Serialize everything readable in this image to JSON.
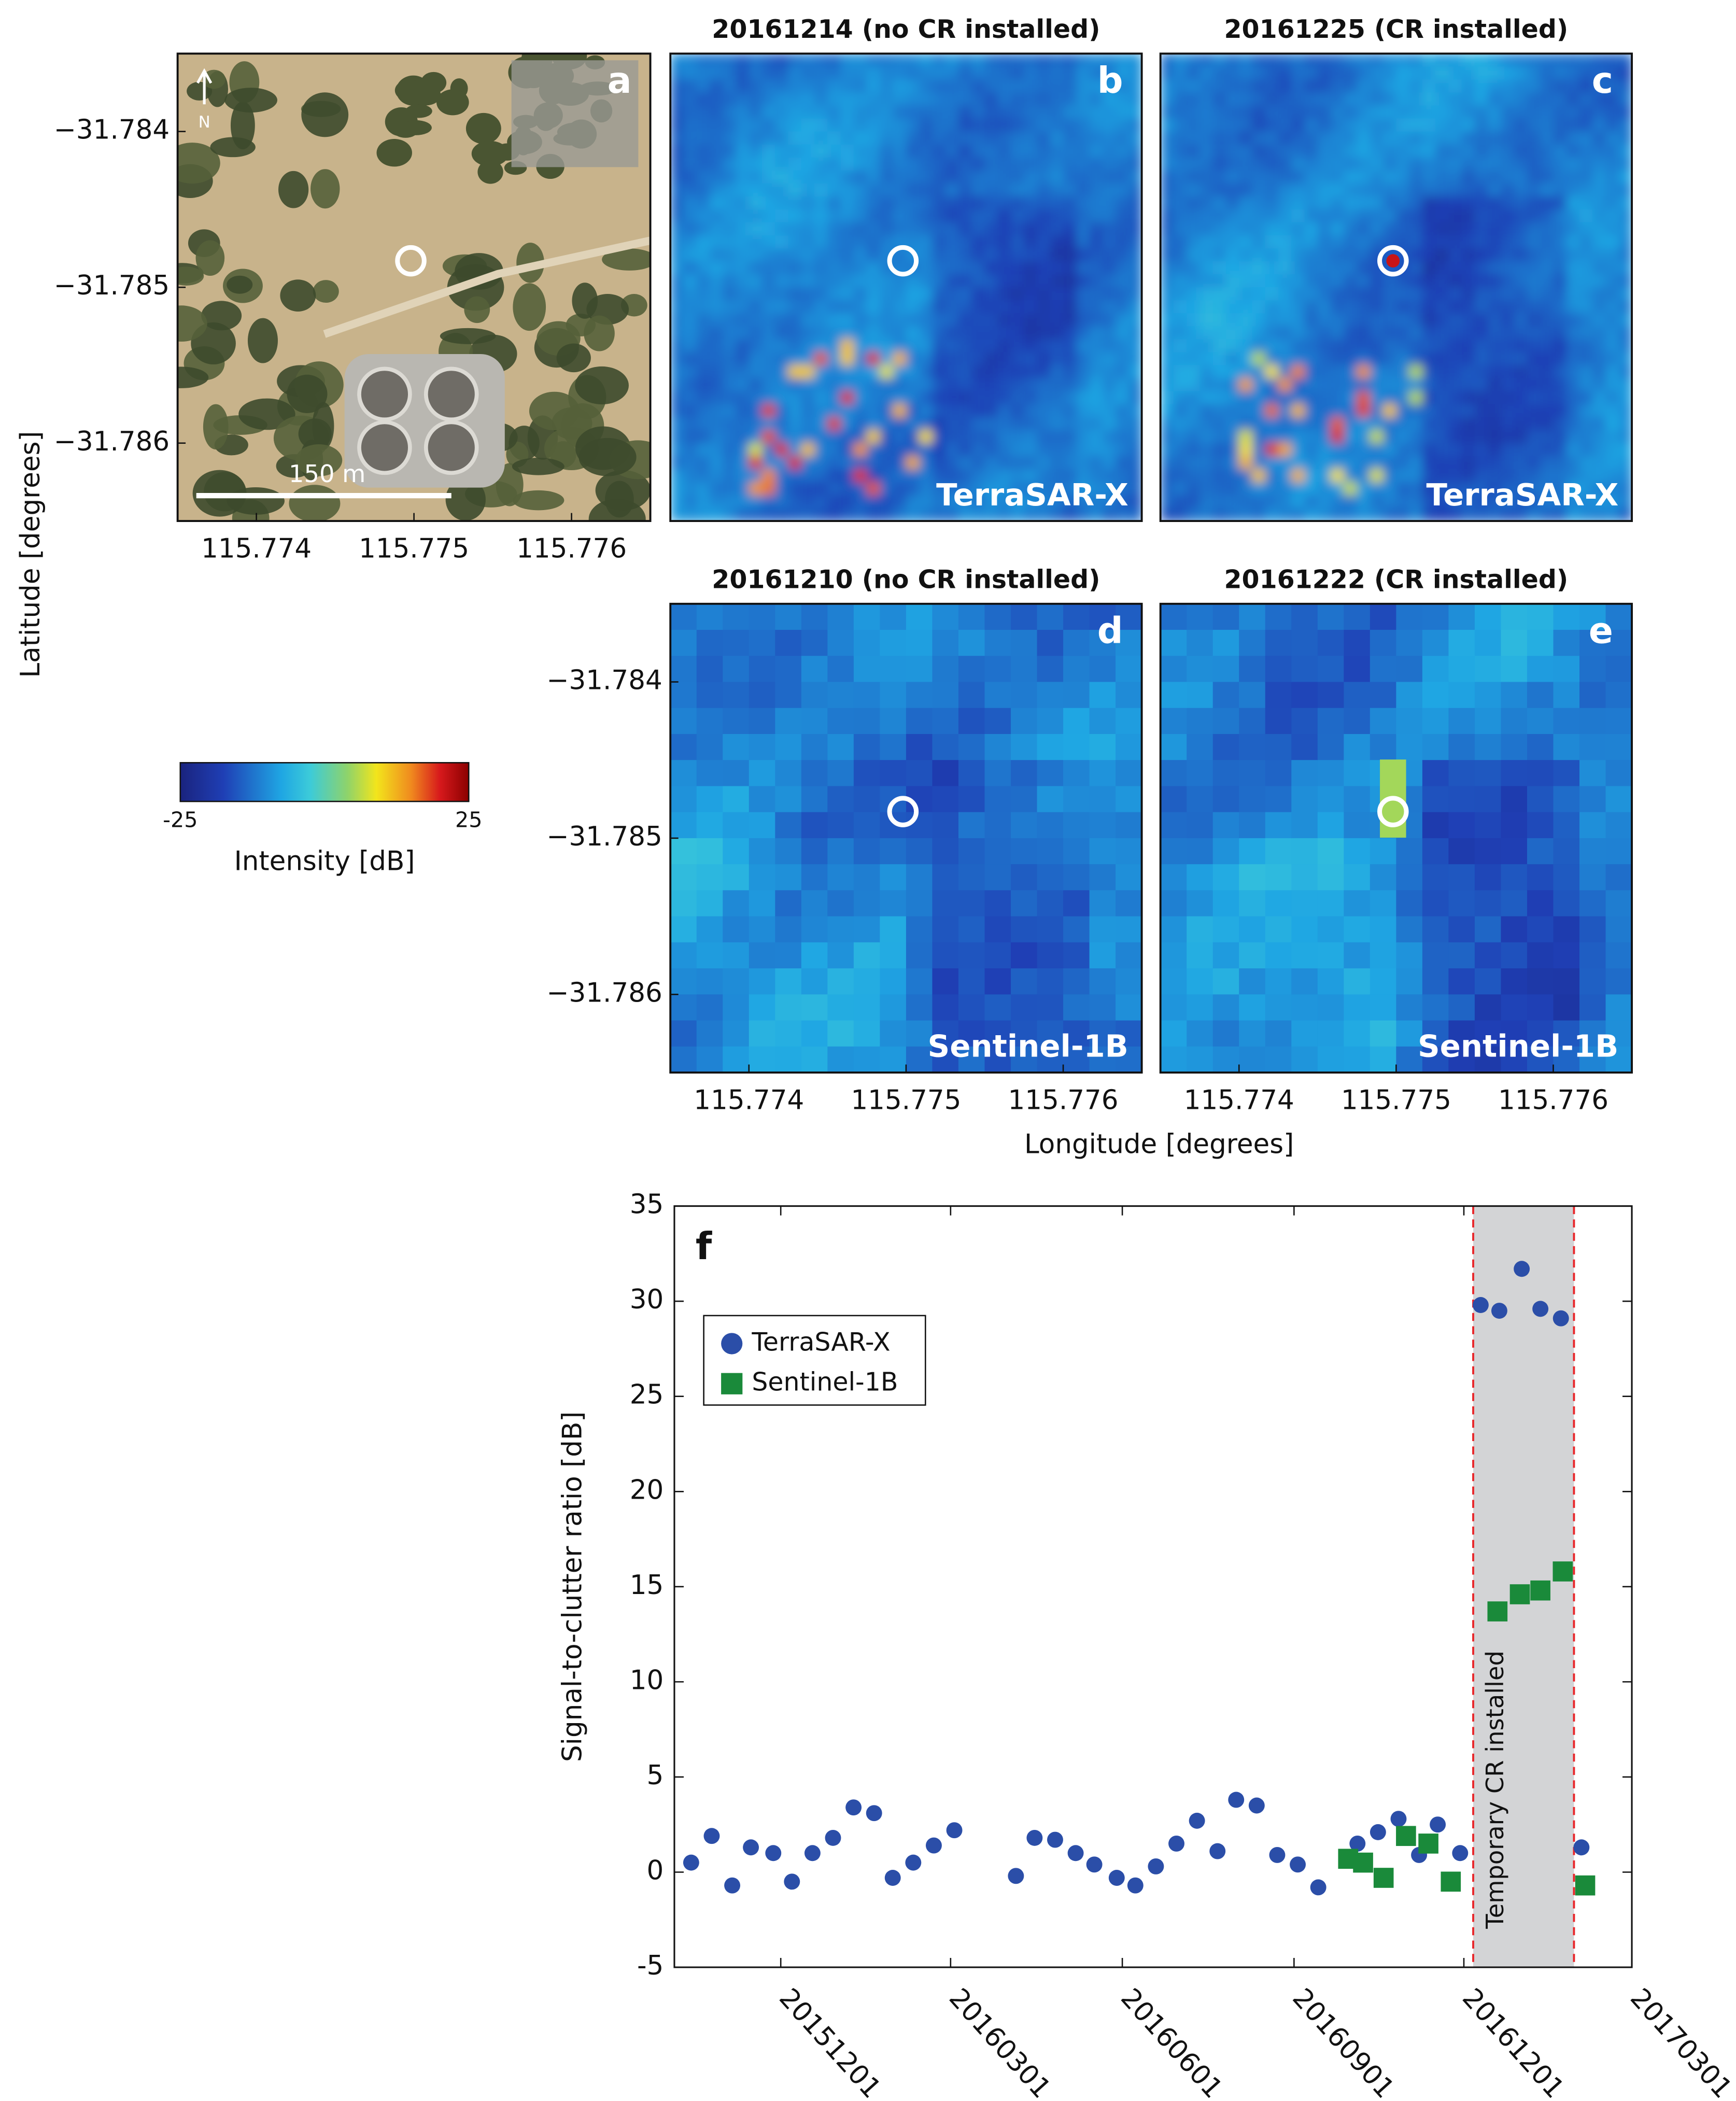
{
  "figure": {
    "ylabel": "Latitude [degrees]",
    "xlabel": "Longitude [degrees]",
    "cr_location": {
      "lon": 115.77498,
      "lat": -31.78483
    },
    "colorbar": {
      "label": "Intensity [dB]",
      "lim": [
        -25,
        25
      ],
      "ticks": [
        -25,
        25
      ]
    }
  },
  "chart_data": [
    {
      "type": "photo",
      "label": "a",
      "north": "N",
      "scale_bar": "150 m",
      "xlim": [
        115.7735,
        115.7765
      ],
      "ylim": [
        -31.7865,
        -31.7835
      ],
      "xticks": [
        115.774,
        115.775,
        115.776
      ],
      "yticks": [
        {
          "value": -31.784,
          "label": "−31.784"
        },
        {
          "value": -31.785,
          "label": "−31.785"
        },
        {
          "value": -31.786,
          "label": "−31.786"
        }
      ]
    },
    {
      "type": "sar-fine",
      "label": "b",
      "title": "20161214 (no CR installed)",
      "sensor": "TerraSAR-X",
      "cr_visible": false,
      "xlim": [
        115.7735,
        115.7765
      ],
      "ylim": [
        -31.7865,
        -31.7835
      ]
    },
    {
      "type": "sar-fine",
      "label": "c",
      "title": "20161225 (CR installed)",
      "sensor": "TerraSAR-X",
      "cr_visible": true,
      "xlim": [
        115.7735,
        115.7765
      ],
      "ylim": [
        -31.7865,
        -31.7835
      ]
    },
    {
      "type": "sar-coarse",
      "label": "d",
      "title": "20161210 (no CR installed)",
      "sensor": "Sentinel-1B",
      "cr_visible": false,
      "xlim": [
        115.7735,
        115.7765
      ],
      "ylim": [
        -31.7865,
        -31.7835
      ],
      "xticks": [
        115.774,
        115.775,
        115.776
      ],
      "yticks": [
        {
          "value": -31.784,
          "label": "−31.784"
        },
        {
          "value": -31.785,
          "label": "−31.785"
        },
        {
          "value": -31.786,
          "label": "−31.786"
        }
      ]
    },
    {
      "type": "sar-coarse",
      "label": "e",
      "title": "20161222 (CR installed)",
      "sensor": "Sentinel-1B",
      "cr_visible": true,
      "xlim": [
        115.7735,
        115.7765
      ],
      "ylim": [
        -31.7865,
        -31.7835
      ],
      "xticks": [
        115.774,
        115.775,
        115.776
      ]
    },
    {
      "type": "scatter",
      "label": "f",
      "ylabel": "Signal-to-clutter ratio [dB]",
      "xlim": [
        "20151005",
        "20170301"
      ],
      "xticks": [
        "20151201",
        "20160301",
        "20160601",
        "20160901",
        "20161201",
        "20170301"
      ],
      "ylim": [
        -5,
        35
      ],
      "yticks": [
        -5,
        0,
        5,
        10,
        15,
        20,
        25,
        30,
        35
      ],
      "legend": "upper left",
      "annotation": {
        "text": "Temporary CR installed",
        "x": [
          "20161206",
          "20170129"
        ],
        "color": "#d3d4d6",
        "line_color": "#e8262a"
      },
      "series": [
        {
          "name": "TerraSAR-X",
          "color": "#2b4ea8",
          "marker": "circle",
          "x": [
            "20151014",
            "20151025",
            "20151105",
            "20151115",
            "20151127",
            "20151207",
            "20151218",
            "20151229",
            "20160109",
            "20160120",
            "20160130",
            "20160210",
            "20160221",
            "20160303",
            "20160405",
            "20160415",
            "20160426",
            "20160507",
            "20160517",
            "20160529",
            "20160608",
            "20160619",
            "20160630",
            "20160711",
            "20160722",
            "20160801",
            "20160812",
            "20160823",
            "20160903",
            "20160914",
            "20161005",
            "20161016",
            "20161027",
            "20161107",
            "20161117",
            "20161129",
            "20161210",
            "20161220",
            "20170101",
            "20170111",
            "20170122",
            "20170202"
          ],
          "values": [
            0.5,
            1.9,
            -0.7,
            1.3,
            1.0,
            -0.5,
            1.0,
            1.8,
            3.4,
            3.1,
            -0.3,
            0.5,
            1.4,
            2.2,
            -0.2,
            1.8,
            1.7,
            1.0,
            0.4,
            -0.3,
            -0.7,
            0.3,
            1.5,
            2.7,
            1.1,
            3.8,
            3.5,
            0.9,
            0.4,
            -0.8,
            1.5,
            2.1,
            2.8,
            0.9,
            2.5,
            1.0,
            29.8,
            29.5,
            31.7,
            29.6,
            29.1,
            1.3
          ]
        },
        {
          "name": "Sentinel-1B",
          "color": "#1a8a3a",
          "marker": "square",
          "x": [
            "20160930",
            "20161008",
            "20161019",
            "20161031",
            "20161112",
            "20161124",
            "20161219",
            "20161231",
            "20170111",
            "20170123",
            "20170204"
          ],
          "values": [
            0.7,
            0.5,
            -0.3,
            1.9,
            1.5,
            -0.5,
            13.7,
            14.6,
            14.8,
            15.8,
            -0.7
          ]
        }
      ]
    }
  ]
}
